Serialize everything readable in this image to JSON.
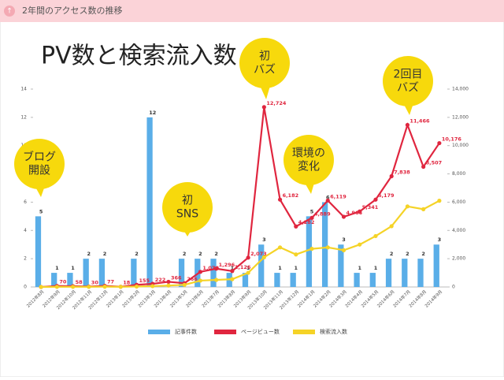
{
  "header": "2年間のアクセス数の推移",
  "chart_data": {
    "type": "bar-line",
    "title": "PV数と検索流入数",
    "categories": [
      "2012年8月",
      "2012年9月",
      "2012年10月",
      "2012年11月",
      "2012年12月",
      "2013年1月",
      "2013年2月",
      "2013年3月",
      "2013年4月",
      "2013年5月",
      "2013年6月",
      "2013年7月",
      "2013年8月",
      "2013年9月",
      "2013年10月",
      "2013年11月",
      "2013年12月",
      "2014年1月",
      "2014年2月",
      "2014年3月",
      "2014年4月",
      "2014年5月",
      "2014年6月",
      "2014年7月",
      "2014年8月",
      "2014年9月"
    ],
    "series": [
      {
        "name": "記事件数",
        "color": "#5aaee8",
        "kind": "bar",
        "values": [
          5,
          1,
          1,
          2,
          2,
          0,
          2,
          12,
          0,
          2,
          2,
          2,
          1,
          1,
          3,
          1,
          1,
          5,
          6,
          3,
          1,
          1,
          2,
          2,
          2,
          3
        ]
      },
      {
        "name": "ページビュー数",
        "color": "#e0263f",
        "kind": "line",
        "axis": "y2",
        "values": [
          0,
          70,
          58,
          30,
          77,
          18,
          155,
          222,
          366,
          266,
          1070,
          1296,
          1126,
          2073,
          12724,
          6182,
          4282,
          4889,
          6119,
          4966,
          5341,
          6179,
          7838,
          11466,
          8507,
          10176
        ],
        "value_labels": [
          null,
          "70",
          "58",
          "30",
          "77",
          "18",
          "155",
          "222",
          "366",
          "266",
          "1,070",
          "1,296",
          "1,126",
          "2,073",
          "12,724",
          "6,182",
          "4,282",
          "4,889",
          "6,119",
          "4,966",
          "5,341",
          "6,179",
          "7,838",
          "11,466",
          "8,507",
          "10,176"
        ]
      },
      {
        "name": "検索流入数",
        "color": "#f5d327",
        "kind": "line",
        "axis": "y2",
        "values": [
          0,
          10,
          10,
          10,
          20,
          10,
          30,
          60,
          100,
          150,
          450,
          500,
          550,
          1000,
          2100,
          2800,
          2300,
          2700,
          2800,
          2600,
          3000,
          3600,
          4300,
          5700,
          5500,
          6100
        ]
      }
    ],
    "ylim": [
      0,
      14
    ],
    "yticks": [
      0,
      2,
      4,
      6,
      8,
      10,
      12,
      14
    ],
    "y2lim": [
      0,
      14000
    ],
    "y2ticks": [
      0,
      {
        "value": 2000,
        "label": "2,000"
      },
      {
        "value": 4000,
        "label": "4,000"
      },
      {
        "value": 6000,
        "label": "6,000"
      },
      {
        "value": 8000,
        "label": "8,000"
      },
      {
        "value": 10000,
        "label": "10,000"
      },
      {
        "value": 12000,
        "label": "12,000"
      },
      {
        "value": 14000,
        "label": "14,000"
      }
    ],
    "grid": false,
    "legend": "bottom",
    "annotations": [
      [
        "ブログ",
        "開設"
      ],
      [
        "初",
        "SNS"
      ],
      [
        "初",
        "バズ"
      ],
      [
        "環境の",
        "変化"
      ],
      [
        "2回目",
        "バズ"
      ]
    ]
  }
}
